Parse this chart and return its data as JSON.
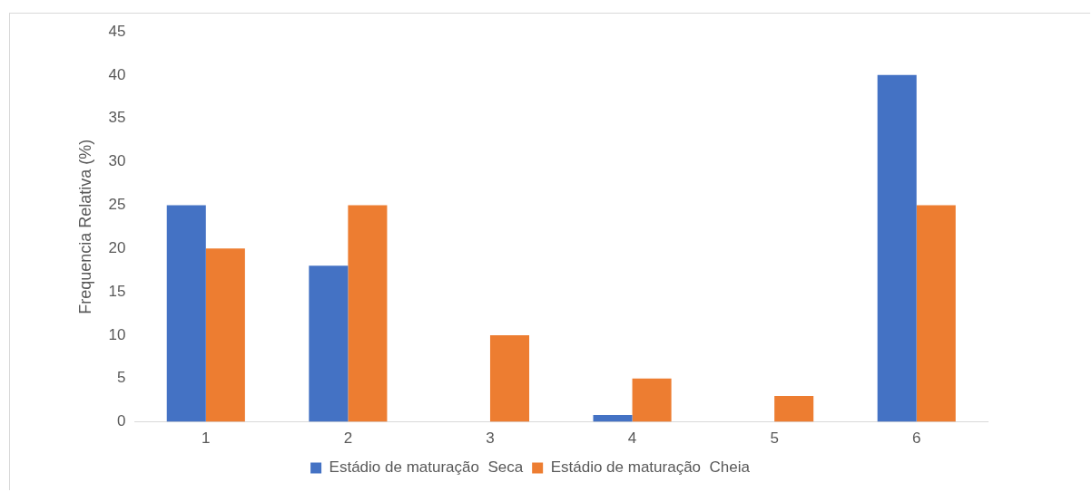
{
  "chart_data": {
    "type": "bar",
    "ylabel": "Frequencia Relativa (%)",
    "categories": [
      "1",
      "2",
      "3",
      "4",
      "5",
      "6"
    ],
    "series": [
      {
        "name": "Estádio de maturação  Seca",
        "color": "#4472c4",
        "values": [
          25,
          18,
          0,
          0.8,
          0,
          40
        ]
      },
      {
        "name": "Estádio de maturação  Cheia",
        "color": "#ed7d31",
        "values": [
          20,
          25,
          10,
          5,
          3,
          25
        ]
      }
    ],
    "ylim": [
      0,
      45
    ],
    "yticks": [
      0,
      5,
      10,
      15,
      20,
      25,
      30,
      35,
      40,
      45
    ],
    "grid": false,
    "legend": "bottom"
  }
}
